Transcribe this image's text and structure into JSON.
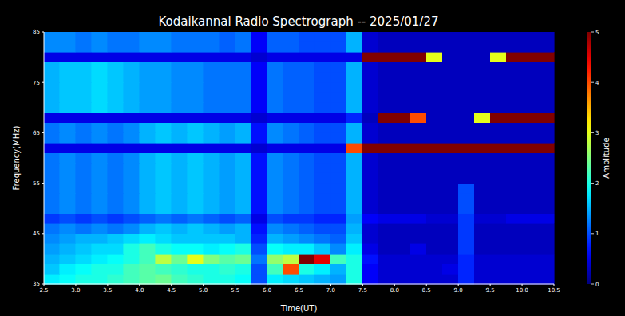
{
  "chart_data": {
    "type": "heatmap",
    "title": "Kodaikannal Radio Spectrograph -- 2025/01/27",
    "x_label": "Time(UT)",
    "y_label": "Frequency(MHz)",
    "xlim": [
      2.5,
      10.5
    ],
    "ylim": [
      35,
      85
    ],
    "xticks": [
      2.5,
      {
        "value": 3,
        "label": "3.0"
      },
      3.5,
      {
        "value": 4,
        "label": "4.0"
      },
      4.5,
      {
        "value": 5,
        "label": "5.0"
      },
      5.5,
      {
        "value": 6,
        "label": "6.0"
      },
      6.5,
      {
        "value": 7,
        "label": "7.0"
      },
      7.5,
      {
        "value": 8,
        "label": "8.0"
      },
      8.5,
      {
        "value": 9,
        "label": "9.0"
      },
      9.5,
      {
        "value": 10,
        "label": "10.0"
      },
      10.5
    ],
    "yticks": [
      35,
      45,
      55,
      65,
      75,
      85
    ],
    "grid": false,
    "x_edges": [
      2.5,
      2.75,
      3,
      3.25,
      3.5,
      3.75,
      4,
      4.25,
      4.5,
      4.75,
      5,
      5.25,
      5.5,
      5.75,
      6,
      6.25,
      6.5,
      6.75,
      7,
      7.25,
      7.5,
      7.75,
      8,
      8.25,
      8.5,
      8.75,
      9,
      9.25,
      9.5,
      9.75,
      10,
      10.25,
      10.5
    ],
    "y_edges": [
      35,
      37,
      39,
      41,
      43,
      45,
      47,
      49,
      51,
      53,
      55,
      57,
      59,
      61,
      63,
      65,
      67,
      69,
      71,
      73,
      75,
      77,
      79,
      81,
      83,
      85
    ],
    "cells": [
      [
        1.8,
        1.9,
        2.0,
        2.0,
        2.1,
        2.2,
        2.3,
        2.4,
        2.2,
        2.1,
        2.0,
        2.0,
        1.9,
        1.0,
        1.8,
        1.7,
        1.6,
        1.5,
        1.4,
        2.0,
        0.6,
        0.4,
        0.4,
        0.4,
        0.4,
        0.4,
        0.8,
        0.4,
        0.4,
        0.4,
        0.4,
        0.4
      ],
      [
        1.6,
        1.8,
        1.9,
        2.0,
        2.0,
        2.2,
        2.3,
        2.2,
        2.1,
        2.0,
        2.0,
        2.1,
        2.0,
        1.0,
        2.2,
        4.0,
        2.0,
        1.8,
        1.5,
        2.0,
        0.6,
        0.4,
        0.4,
        0.4,
        0.4,
        0.5,
        0.8,
        0.4,
        0.4,
        0.4,
        0.4,
        0.4
      ],
      [
        1.5,
        1.6,
        1.7,
        1.8,
        1.9,
        2.0,
        2.2,
        2.8,
        2.4,
        3.0,
        2.5,
        2.3,
        2.4,
        1.2,
        2.6,
        2.8,
        5.0,
        4.5,
        2.2,
        2.0,
        0.7,
        0.4,
        0.4,
        0.4,
        0.4,
        0.4,
        0.8,
        0.4,
        0.4,
        0.4,
        0.4,
        0.4
      ],
      [
        1.4,
        1.5,
        1.6,
        1.7,
        1.7,
        2.0,
        2.2,
        2.0,
        1.9,
        1.9,
        1.8,
        1.9,
        2.0,
        1.0,
        1.9,
        1.8,
        1.8,
        1.6,
        1.3,
        1.8,
        0.5,
        0.3,
        0.3,
        0.5,
        0.3,
        0.3,
        0.9,
        0.3,
        0.3,
        0.3,
        0.3,
        0.3
      ],
      [
        1.3,
        1.4,
        1.5,
        1.5,
        1.6,
        1.7,
        1.8,
        1.7,
        1.6,
        1.6,
        1.6,
        1.6,
        1.5,
        0.8,
        1.5,
        1.4,
        1.3,
        1.2,
        1.1,
        1.6,
        0.4,
        0.3,
        0.3,
        0.3,
        0.3,
        0.3,
        0.9,
        0.3,
        0.3,
        0.3,
        0.3,
        0.3
      ],
      [
        1.2,
        1.3,
        1.2,
        1.3,
        1.2,
        1.3,
        1.5,
        1.6,
        1.5,
        1.6,
        1.5,
        1.4,
        1.5,
        0.7,
        1.3,
        1.2,
        1.1,
        1.0,
        1.0,
        1.5,
        0.4,
        0.3,
        0.3,
        0.3,
        0.3,
        0.3,
        0.9,
        0.3,
        0.3,
        0.3,
        0.3,
        0.3
      ],
      [
        0.9,
        1.0,
        0.9,
        1.0,
        0.9,
        1.0,
        1.1,
        1.2,
        1.1,
        1.2,
        1.1,
        1.0,
        1.1,
        0.5,
        1.0,
        0.9,
        0.9,
        0.8,
        0.8,
        1.4,
        0.6,
        0.5,
        0.5,
        0.5,
        0.4,
        0.4,
        0.9,
        0.4,
        0.4,
        0.5,
        0.5,
        0.5
      ],
      [
        1.2,
        1.3,
        1.2,
        1.3,
        1.2,
        1.3,
        1.5,
        1.6,
        1.5,
        1.6,
        1.5,
        1.4,
        1.5,
        0.7,
        1.3,
        1.2,
        1.1,
        1.0,
        1.0,
        1.5,
        0.4,
        0.3,
        0.3,
        0.3,
        0.3,
        0.3,
        1.0,
        0.3,
        0.3,
        0.3,
        0.3,
        0.3
      ],
      [
        1.2,
        1.3,
        1.2,
        1.3,
        1.2,
        1.3,
        1.5,
        1.6,
        1.5,
        1.6,
        1.5,
        1.4,
        1.5,
        0.7,
        1.3,
        1.2,
        1.1,
        1.0,
        1.0,
        1.5,
        0.4,
        0.3,
        0.3,
        0.3,
        0.3,
        0.3,
        1.0,
        0.3,
        0.3,
        0.3,
        0.3,
        0.3
      ],
      [
        1.2,
        1.3,
        1.2,
        1.3,
        1.2,
        1.3,
        1.5,
        1.6,
        1.5,
        1.6,
        1.5,
        1.4,
        1.5,
        0.7,
        1.3,
        1.2,
        1.1,
        1.0,
        1.0,
        1.5,
        0.4,
        0.3,
        0.3,
        0.3,
        0.3,
        0.3,
        1.0,
        0.3,
        0.3,
        0.3,
        0.3,
        0.3
      ],
      [
        1.2,
        1.3,
        1.2,
        1.3,
        1.2,
        1.3,
        1.5,
        1.6,
        1.5,
        1.6,
        1.5,
        1.4,
        1.5,
        0.7,
        1.3,
        1.2,
        1.1,
        1.0,
        1.0,
        1.5,
        0.4,
        0.3,
        0.3,
        0.3,
        0.3,
        0.3,
        0.3,
        0.3,
        0.3,
        0.3,
        0.3,
        0.3
      ],
      [
        1.2,
        1.3,
        1.2,
        1.3,
        1.2,
        1.3,
        1.5,
        1.6,
        1.5,
        1.6,
        1.5,
        1.4,
        1.5,
        0.7,
        1.3,
        1.2,
        1.1,
        1.0,
        1.0,
        1.5,
        0.4,
        0.3,
        0.3,
        0.3,
        0.3,
        0.3,
        0.3,
        0.3,
        0.3,
        0.3,
        0.3,
        0.3
      ],
      [
        1.2,
        1.3,
        1.2,
        1.3,
        1.2,
        1.3,
        1.5,
        1.6,
        1.5,
        1.6,
        1.5,
        1.4,
        1.5,
        0.7,
        1.3,
        1.2,
        1.1,
        1.0,
        1.0,
        1.5,
        0.4,
        0.3,
        0.3,
        0.3,
        0.3,
        0.3,
        0.3,
        0.3,
        0.3,
        0.3,
        0.3,
        0.3
      ],
      [
        0.5,
        0.5,
        0.5,
        0.5,
        0.5,
        0.5,
        0.5,
        0.5,
        0.5,
        0.5,
        0.5,
        0.5,
        0.5,
        0.4,
        0.5,
        0.5,
        0.5,
        0.5,
        0.5,
        4.0,
        5,
        5,
        5,
        5,
        5,
        5,
        5,
        5,
        5,
        5,
        5,
        5
      ],
      [
        1.2,
        1.3,
        1.2,
        1.3,
        1.2,
        1.3,
        1.5,
        1.6,
        1.5,
        1.6,
        1.5,
        1.4,
        1.5,
        0.7,
        1.3,
        1.2,
        1.1,
        1.0,
        1.0,
        1.5,
        0.4,
        0.3,
        0.3,
        0.3,
        0.3,
        0.3,
        0.3,
        0.3,
        0.3,
        0.3,
        0.3,
        0.3
      ],
      [
        1.2,
        1.3,
        1.2,
        1.3,
        1.2,
        1.3,
        1.5,
        1.6,
        1.5,
        1.6,
        1.5,
        1.4,
        1.5,
        0.7,
        1.3,
        1.2,
        1.1,
        1.0,
        1.0,
        1.5,
        0.4,
        0.3,
        0.3,
        0.3,
        0.3,
        0.3,
        0.3,
        0.3,
        0.3,
        0.3,
        0.3,
        0.3
      ],
      [
        0.5,
        0.5,
        0.5,
        0.5,
        0.5,
        0.5,
        0.5,
        0.5,
        0.5,
        0.5,
        0.5,
        0.5,
        0.5,
        0.4,
        0.5,
        0.5,
        0.5,
        0.5,
        0.5,
        0.8,
        0.3,
        5,
        5,
        4,
        0.3,
        0.3,
        0.3,
        3,
        5,
        5,
        5,
        5
      ],
      [
        1.5,
        1.6,
        1.6,
        1.7,
        1.6,
        1.5,
        1.4,
        1.4,
        1.3,
        1.3,
        1.2,
        1.2,
        1.2,
        0.6,
        1.2,
        1.1,
        1.1,
        1.0,
        1.0,
        1.5,
        0.4,
        0.3,
        0.3,
        0.3,
        0.3,
        0.3,
        0.3,
        0.3,
        0.3,
        0.3,
        0.3,
        0.3
      ],
      [
        1.5,
        1.6,
        1.6,
        1.7,
        1.6,
        1.5,
        1.4,
        1.4,
        1.3,
        1.3,
        1.2,
        1.2,
        1.2,
        0.6,
        1.2,
        1.1,
        1.1,
        1.0,
        1.0,
        1.5,
        0.4,
        0.3,
        0.3,
        0.3,
        0.3,
        0.3,
        0.3,
        0.3,
        0.3,
        0.3,
        0.3,
        0.3
      ],
      [
        1.5,
        1.6,
        1.6,
        1.7,
        1.6,
        1.5,
        1.4,
        1.4,
        1.3,
        1.3,
        1.2,
        1.2,
        1.2,
        0.6,
        1.2,
        1.1,
        1.1,
        1.0,
        1.0,
        1.5,
        0.4,
        0.3,
        0.3,
        0.3,
        0.3,
        0.3,
        0.3,
        0.3,
        0.3,
        0.3,
        0.3,
        0.3
      ],
      [
        1.5,
        1.6,
        1.6,
        1.7,
        1.6,
        1.5,
        1.4,
        1.4,
        1.3,
        1.3,
        1.2,
        1.2,
        1.2,
        0.6,
        1.2,
        1.1,
        1.1,
        1.0,
        1.0,
        1.5,
        0.4,
        0.3,
        0.3,
        0.3,
        0.3,
        0.3,
        0.3,
        0.3,
        0.3,
        0.3,
        0.3,
        0.3
      ],
      [
        1.5,
        1.6,
        1.6,
        1.7,
        1.6,
        1.5,
        1.4,
        1.4,
        1.3,
        1.3,
        1.2,
        1.2,
        1.2,
        0.6,
        1.2,
        1.1,
        1.1,
        1.0,
        1.0,
        1.5,
        0.4,
        0.3,
        0.3,
        0.3,
        0.3,
        0.3,
        0.3,
        0.3,
        0.3,
        0.3,
        0.3,
        0.3
      ],
      [
        0.5,
        0.5,
        0.5,
        0.5,
        0.5,
        0.5,
        0.5,
        0.5,
        0.5,
        0.5,
        0.5,
        0.5,
        0.5,
        0.4,
        0.5,
        0.5,
        0.5,
        0.5,
        0.5,
        0.5,
        5,
        5,
        5,
        5,
        3,
        0.3,
        0.3,
        0.3,
        3,
        5,
        5,
        5
      ],
      [
        1.3,
        1.3,
        1.2,
        1.3,
        1.2,
        1.2,
        1.3,
        1.3,
        1.2,
        1.2,
        1.2,
        1.1,
        1.2,
        0.6,
        1.1,
        1.1,
        1.0,
        1.0,
        1.0,
        1.5,
        0.4,
        0.3,
        0.3,
        0.3,
        0.3,
        0.3,
        0.3,
        0.3,
        0.3,
        0.3,
        0.3,
        0.3
      ],
      [
        1.3,
        1.3,
        1.2,
        1.3,
        1.2,
        1.2,
        1.3,
        1.3,
        1.2,
        1.2,
        1.2,
        1.1,
        1.2,
        0.6,
        1.1,
        1.1,
        1.0,
        1.0,
        1.0,
        1.5,
        0.4,
        0.3,
        0.3,
        0.3,
        0.3,
        0.3,
        0.3,
        0.3,
        0.3,
        0.3,
        0.3,
        0.3
      ]
    ],
    "colorbar": {
      "label": "Amplitude",
      "range": [
        0,
        5
      ],
      "ticks": [
        0,
        1,
        2,
        3,
        4,
        5
      ]
    }
  }
}
